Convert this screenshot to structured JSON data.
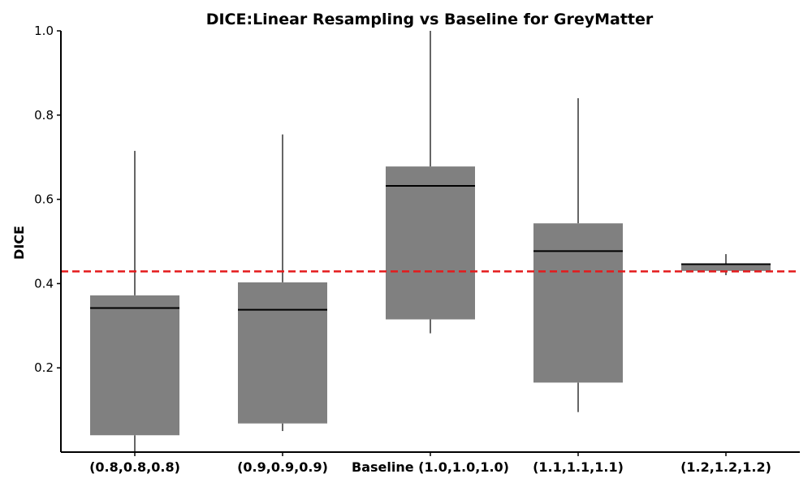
{
  "chart_data": {
    "type": "box",
    "title": "DICE:Linear Resampling vs Baseline for GreyMatter",
    "ylabel": "DICE",
    "xlabel": "",
    "ylim": [
      0.0,
      1.0
    ],
    "yticks": [
      "0.2",
      "0.4",
      "0.6",
      "0.8",
      "1.0"
    ],
    "categories": [
      "(0.8,0.8,0.8)",
      "(0.9,0.9,0.9)",
      "Baseline (1.0,1.0,1.0)",
      "(1.1,1.1,1.1)",
      "(1.2,1.2,1.2)"
    ],
    "boxes": [
      {
        "whisker_low": 0.0,
        "q1": 0.04,
        "median": 0.342,
        "q3": 0.372,
        "whisker_high": 0.715
      },
      {
        "whisker_low": 0.05,
        "q1": 0.068,
        "median": 0.338,
        "q3": 0.403,
        "whisker_high": 0.754
      },
      {
        "whisker_low": 0.282,
        "q1": 0.315,
        "median": 0.632,
        "q3": 0.678,
        "whisker_high": 1.0
      },
      {
        "whisker_low": 0.095,
        "q1": 0.165,
        "median": 0.477,
        "q3": 0.543,
        "whisker_high": 0.84
      },
      {
        "whisker_low": 0.42,
        "q1": 0.43,
        "median": 0.446,
        "q3": 0.448,
        "whisker_high": 0.47
      }
    ],
    "baseline_median": 0.429,
    "grid": false,
    "colors": {
      "box": "#808080",
      "median": "#000000",
      "baseline_line": "#e41a1c"
    }
  }
}
